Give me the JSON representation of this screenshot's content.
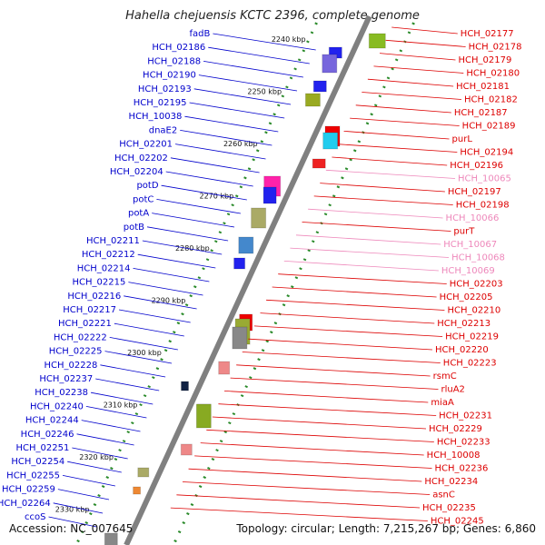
{
  "title": "Hahella chejuensis KCTC 2396, complete genome",
  "footer": {
    "accession": "Accession: NC_007645",
    "summary": "Topology: circular; Length: 7,215,267 bp; Genes: 6,860"
  },
  "colors": {
    "backbone": "#808080",
    "minus_strand_label": "#0000cc",
    "plus_strand_label": "#dd0000",
    "rna_label": "#ee88bb",
    "ticks": "#2a8a2a"
  },
  "kbp_ticks": [
    "2240 kbp",
    "2250 kbp",
    "2260 kbp",
    "2270 kbp",
    "2280 kbp",
    "2290 kbp",
    "2300 kbp",
    "2310 kbp",
    "2320 kbp",
    "2330 kbp"
  ],
  "left_labels": [
    "fadB",
    "HCH_02186",
    "HCH_02188",
    "HCH_02190",
    "HCH_02193",
    "HCH_02195",
    "HCH_10038",
    "dnaE2",
    "HCH_02201",
    "HCH_02202",
    "HCH_02204",
    "potD",
    "potC",
    "potA",
    "potB",
    "HCH_02211",
    "HCH_02212",
    "HCH_02214",
    "HCH_02215",
    "HCH_02216",
    "HCH_02217",
    "HCH_02221",
    "HCH_02222",
    "HCH_02225",
    "HCH_02228",
    "HCH_02237",
    "HCH_02238",
    "HCH_02240",
    "HCH_02244",
    "HCH_02246",
    "HCH_02251",
    "HCH_02254",
    "HCH_02255",
    "HCH_02259",
    "HCH_02264",
    "ccoS"
  ],
  "right_labels": [
    "HCH_02177",
    "HCH_02178",
    "HCH_02179",
    "HCH_02180",
    "HCH_02181",
    "HCH_02182",
    "HCH_02187",
    "HCH_02189",
    "purL",
    "HCH_02194",
    "HCH_02196",
    "HCH_10065",
    "HCH_02197",
    "HCH_02198",
    "HCH_10066",
    "purT",
    "HCH_10067",
    "HCH_10068",
    "HCH_10069",
    "HCH_02203",
    "HCH_02205",
    "HCH_02210",
    "HCH_02213",
    "HCH_02219",
    "HCH_02220",
    "HCH_02223",
    "rsmC",
    "rluA2",
    "miaA",
    "HCH_02231",
    "HCH_02229",
    "HCH_02233",
    "HCH_10008",
    "HCH_02236",
    "HCH_02234",
    "asnC",
    "HCH_02235",
    "HCH_02245"
  ]
}
